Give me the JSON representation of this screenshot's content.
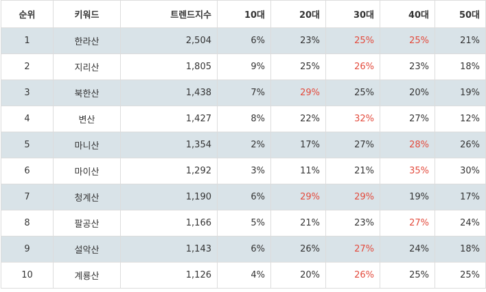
{
  "colors": {
    "highlight": "#e34a3c",
    "stripe": "#d9e3e8",
    "border": "#dcdcdc"
  },
  "headers": [
    "순위",
    "키워드",
    "트렌드지수",
    "10대",
    "20대",
    "30대",
    "40대",
    "50대"
  ],
  "rows": [
    {
      "rank": "1",
      "keyword": "한라산",
      "index": "2,504",
      "a10": "6%",
      "a20": "23%",
      "a30": "25%",
      "a40": "25%",
      "a50": "21%",
      "hl": [
        "a30",
        "a40"
      ]
    },
    {
      "rank": "2",
      "keyword": "지리산",
      "index": "1,805",
      "a10": "9%",
      "a20": "25%",
      "a30": "26%",
      "a40": "23%",
      "a50": "18%",
      "hl": [
        "a30"
      ]
    },
    {
      "rank": "3",
      "keyword": "북한산",
      "index": "1,438",
      "a10": "7%",
      "a20": "29%",
      "a30": "25%",
      "a40": "20%",
      "a50": "19%",
      "hl": [
        "a20"
      ]
    },
    {
      "rank": "4",
      "keyword": "변산",
      "index": "1,427",
      "a10": "8%",
      "a20": "22%",
      "a30": "32%",
      "a40": "27%",
      "a50": "12%",
      "hl": [
        "a30"
      ]
    },
    {
      "rank": "5",
      "keyword": "마니산",
      "index": "1,354",
      "a10": "2%",
      "a20": "17%",
      "a30": "27%",
      "a40": "28%",
      "a50": "26%",
      "hl": [
        "a40"
      ]
    },
    {
      "rank": "6",
      "keyword": "마이산",
      "index": "1,292",
      "a10": "3%",
      "a20": "11%",
      "a30": "21%",
      "a40": "35%",
      "a50": "30%",
      "hl": [
        "a40"
      ]
    },
    {
      "rank": "7",
      "keyword": "청계산",
      "index": "1,190",
      "a10": "6%",
      "a20": "29%",
      "a30": "29%",
      "a40": "19%",
      "a50": "17%",
      "hl": [
        "a20",
        "a30"
      ]
    },
    {
      "rank": "8",
      "keyword": "팔공산",
      "index": "1,166",
      "a10": "5%",
      "a20": "21%",
      "a30": "23%",
      "a40": "27%",
      "a50": "24%",
      "hl": [
        "a40"
      ]
    },
    {
      "rank": "9",
      "keyword": "설악산",
      "index": "1,143",
      "a10": "6%",
      "a20": "26%",
      "a30": "27%",
      "a40": "24%",
      "a50": "18%",
      "hl": [
        "a30"
      ]
    },
    {
      "rank": "10",
      "keyword": "계룡산",
      "index": "1,126",
      "a10": "4%",
      "a20": "20%",
      "a30": "26%",
      "a40": "25%",
      "a50": "25%",
      "hl": [
        "a30"
      ]
    }
  ]
}
